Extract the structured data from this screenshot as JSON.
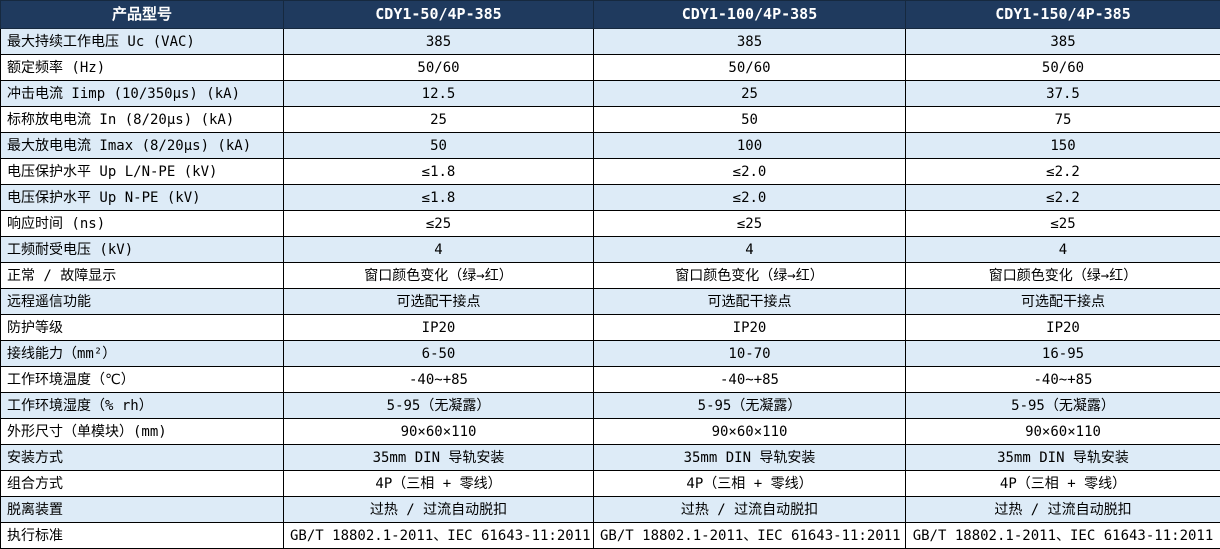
{
  "colors": {
    "header_bg": "#1F3A5E",
    "header_text": "#FFFFFF",
    "row_alt_bg": "#DDEBF7",
    "row_bg": "#FFFFFF",
    "border": "#000000",
    "body_text": "#000000"
  },
  "table": {
    "header": {
      "label": "产品型号",
      "models": [
        "CDY1-50/4P-385",
        "CDY1-100/4P-385",
        "CDY1-150/4P-385"
      ]
    },
    "rows": [
      {
        "label": "最大持续工作电压 Uc (VAC)",
        "values": [
          "385",
          "385",
          "385"
        ]
      },
      {
        "label": "额定频率 (Hz)",
        "values": [
          "50/60",
          "50/60",
          "50/60"
        ]
      },
      {
        "label": "冲击电流 Iimp (10/350μs) (kA)",
        "values": [
          "12.5",
          "25",
          "37.5"
        ]
      },
      {
        "label": "标称放电电流 In (8/20μs) (kA)",
        "values": [
          "25",
          "50",
          "75"
        ]
      },
      {
        "label": "最大放电电流 Imax (8/20μs) (kA)",
        "values": [
          "50",
          "100",
          "150"
        ]
      },
      {
        "label": "电压保护水平 Up L/N-PE (kV)",
        "values": [
          "≤1.8",
          "≤2.0",
          "≤2.2"
        ]
      },
      {
        "label": "电压保护水平 Up N-PE (kV)",
        "values": [
          "≤1.8",
          "≤2.0",
          "≤2.2"
        ]
      },
      {
        "label": "响应时间 (ns)",
        "values": [
          "≤25",
          "≤25",
          "≤25"
        ]
      },
      {
        "label": "工频耐受电压 (kV)",
        "values": [
          "4",
          "4",
          "4"
        ]
      },
      {
        "label": "正常 / 故障显示",
        "values": [
          "窗口颜色变化（绿→红）",
          "窗口颜色变化（绿→红）",
          "窗口颜色变化（绿→红）"
        ]
      },
      {
        "label": "远程遥信功能",
        "values": [
          "可选配干接点",
          "可选配干接点",
          "可选配干接点"
        ]
      },
      {
        "label": "防护等级",
        "values": [
          "IP20",
          "IP20",
          "IP20"
        ]
      },
      {
        "label": "接线能力（mm²）",
        "values": [
          "6-50",
          "10-70",
          "16-95"
        ]
      },
      {
        "label": "工作环境温度（℃）",
        "values": [
          "-40~+85",
          "-40~+85",
          "-40~+85"
        ]
      },
      {
        "label": "工作环境湿度（% rh）",
        "values": [
          "5-95（无凝露）",
          "5-95（无凝露）",
          "5-95（无凝露）"
        ]
      },
      {
        "label": "外形尺寸（单模块）(mm)",
        "values": [
          "90×60×110",
          "90×60×110",
          "90×60×110"
        ]
      },
      {
        "label": "安装方式",
        "values": [
          "35mm DIN 导轨安装",
          "35mm DIN 导轨安装",
          "35mm DIN 导轨安装"
        ]
      },
      {
        "label": "组合方式",
        "values": [
          "4P（三相 + 零线）",
          "4P（三相 + 零线）",
          "4P（三相 + 零线）"
        ]
      },
      {
        "label": "脱离装置",
        "values": [
          "过热 / 过流自动脱扣",
          "过热 / 过流自动脱扣",
          "过热 / 过流自动脱扣"
        ]
      },
      {
        "label": "执行标准",
        "values": [
          "GB/T 18802.1-2011、IEC 61643-11:2011",
          "GB/T 18802.1-2011、IEC 61643-11:2011",
          "GB/T 18802.1-2011、IEC 61643-11:2011"
        ]
      }
    ]
  }
}
